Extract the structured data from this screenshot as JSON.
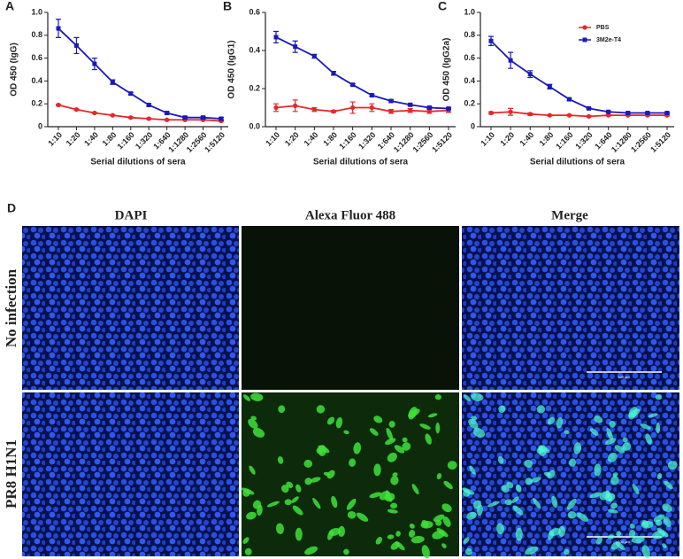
{
  "chart_data": [
    {
      "type": "line",
      "label": "A",
      "ylabel": "OD 450 (IgG)",
      "xlabel": "Serial dilutions of sera",
      "categories": [
        "1:10",
        "1:20",
        "1:40",
        "1:80",
        "1:160",
        "1:320",
        "1:640",
        "1:1280",
        "1:2560",
        "1:5120"
      ],
      "ylim": [
        0,
        1
      ],
      "yticks": [
        0,
        0.2,
        0.4,
        0.6,
        0.8,
        {
          "value": 1,
          "label": "1.0"
        }
      ],
      "series": [
        {
          "color": "#e8262a",
          "marker": "circle",
          "values": [
            0.19,
            0.15,
            0.12,
            0.1,
            0.08,
            0.07,
            0.06,
            0.06,
            0.06,
            0.05
          ],
          "errors": [
            0.005,
            0.005,
            0.005,
            0.005,
            0.005,
            0.005,
            0.005,
            0.005,
            0.005,
            0.005
          ]
        },
        {
          "color": "#1a1ab8",
          "marker": "square",
          "values": [
            0.86,
            0.71,
            0.55,
            0.39,
            0.29,
            0.19,
            0.12,
            0.08,
            0.08,
            0.07
          ],
          "errors": [
            0.08,
            0.07,
            0.05,
            0.02,
            0.01,
            0.01,
            0.01,
            0.01,
            0.01,
            0.01
          ]
        }
      ]
    },
    {
      "type": "line",
      "label": "B",
      "ylabel": "OD 450 (IgG1)",
      "xlabel": "Serial dilutions of sera",
      "categories": [
        "1:10",
        "1:20",
        "1:40",
        "1:80",
        "1:160",
        "1:320",
        "1:640",
        "1:1280",
        "1:2560",
        "1:5120"
      ],
      "ylim": [
        0,
        0.6
      ],
      "yticks": [
        {
          "value": 0,
          "label": "0.0"
        },
        0.2,
        0.4,
        0.6
      ],
      "series": [
        {
          "color": "#e8262a",
          "marker": "circle",
          "values": [
            0.1,
            0.11,
            0.09,
            0.08,
            0.1,
            0.1,
            0.08,
            0.085,
            0.08,
            0.085
          ],
          "errors": [
            0.02,
            0.03,
            0.01,
            0.005,
            0.03,
            0.02,
            0.01,
            0.01,
            0.01,
            0.01
          ]
        },
        {
          "color": "#1a1ab8",
          "marker": "square",
          "values": [
            0.47,
            0.42,
            0.37,
            0.28,
            0.22,
            0.165,
            0.135,
            0.115,
            0.1,
            0.095
          ],
          "errors": [
            0.03,
            0.03,
            0.01,
            0.01,
            0.005,
            0.005,
            0.005,
            0.005,
            0.005,
            0.005
          ]
        }
      ]
    },
    {
      "type": "line",
      "label": "C",
      "ylabel": "OD 450 (IgG2a)",
      "xlabel": "Serial dilutions of sera",
      "categories": [
        "1:10",
        "1:20",
        "1:40",
        "1:80",
        "1:160",
        "1:320",
        "1:640",
        "1:1280",
        "1:2560",
        "1:5120"
      ],
      "ylim": [
        0,
        1
      ],
      "yticks": [
        0,
        0.2,
        0.4,
        0.6,
        0.8,
        {
          "value": 1,
          "label": "1.0"
        }
      ],
      "legend": "upper right",
      "series": [
        {
          "name": "PBS",
          "color": "#e8262a",
          "marker": "circle",
          "values": [
            0.12,
            0.13,
            0.11,
            0.1,
            0.1,
            0.09,
            0.1,
            0.1,
            0.1,
            0.1
          ],
          "errors": [
            0.01,
            0.03,
            0.01,
            0.005,
            0.005,
            0.005,
            0.005,
            0.005,
            0.005,
            0.005
          ]
        },
        {
          "name": "3M2e-T4",
          "color": "#1a1ab8",
          "marker": "square",
          "values": [
            0.75,
            0.58,
            0.46,
            0.35,
            0.24,
            0.16,
            0.13,
            0.12,
            0.12,
            0.12
          ],
          "errors": [
            0.04,
            0.07,
            0.03,
            0.02,
            0.01,
            0.005,
            0.005,
            0.005,
            0.005,
            0.005
          ]
        }
      ]
    }
  ],
  "panel_d": {
    "label": "D",
    "columns": [
      "DAPI",
      "Alexa Fluor 488",
      "Merge"
    ],
    "rows": [
      "No infection",
      "PR8 H1N1"
    ],
    "scale_bar": "100 μm"
  }
}
